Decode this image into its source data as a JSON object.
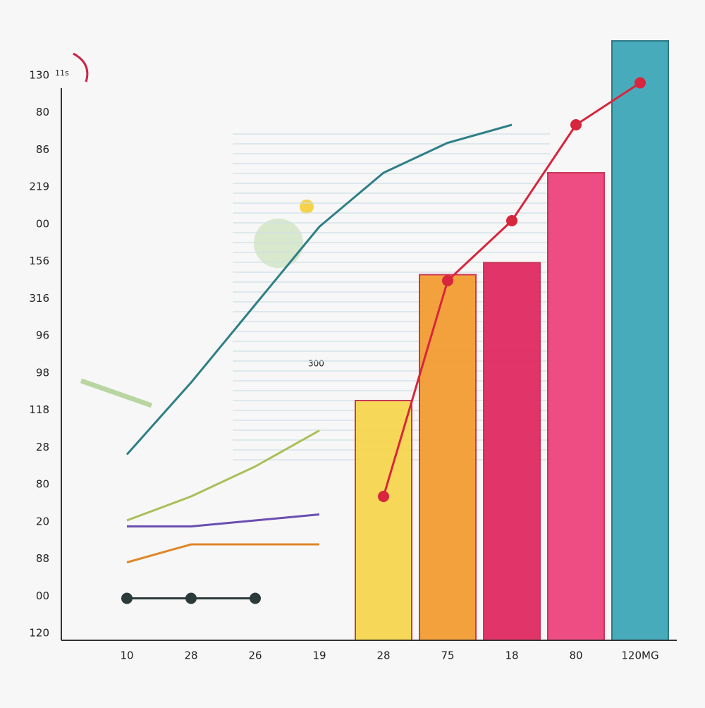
{
  "chart_data": {
    "type": "bar",
    "ylim": [
      0,
      100
    ],
    "ylabels": [
      "130",
      "80",
      "86",
      "219",
      "00",
      "156",
      "316",
      "96",
      "98",
      "118",
      "28",
      "80",
      "20",
      "88",
      "00",
      "120"
    ],
    "categories": [
      "10",
      "28",
      "26",
      "19",
      "28",
      "75",
      "18",
      "80",
      "120MG"
    ],
    "values": [
      null,
      null,
      null,
      null,
      40,
      61,
      63,
      78,
      100
    ],
    "colors": [
      "#f7d54a",
      "#f7d54a",
      "#f7d54a",
      "#f7d54a",
      "#f7d54a",
      "#f39a2e",
      "#e0245e",
      "#ee3f7a",
      "#3aa5b8"
    ],
    "series": [
      {
        "name": "teal",
        "color": "#2f7f86",
        "values": [
          31,
          43,
          56,
          69,
          78,
          83,
          86,
          null,
          null
        ],
        "markers": false
      },
      {
        "name": "red",
        "color": "#d7263d",
        "values": [
          null,
          null,
          null,
          null,
          24,
          60,
          70,
          86,
          93
        ],
        "markers": true
      },
      {
        "name": "olive",
        "color": "#a9bf5a",
        "values": [
          20,
          24,
          29,
          35,
          null,
          null,
          null,
          null,
          null
        ],
        "markers": false
      },
      {
        "name": "purple",
        "color": "#6a4fb0",
        "values": [
          19,
          19,
          20,
          21,
          null,
          null,
          null,
          null,
          null
        ],
        "markers": false
      },
      {
        "name": "orange",
        "color": "#e0862a",
        "values": [
          13,
          16,
          16,
          16,
          null,
          null,
          null,
          null,
          null
        ],
        "markers": false
      },
      {
        "name": "dots",
        "color": "#2b3a3a",
        "values": [
          7,
          7,
          7,
          null,
          null,
          null,
          null,
          null,
          null
        ],
        "markers": true
      }
    ],
    "annotations": [
      "11s",
      "300"
    ],
    "grid": true
  }
}
